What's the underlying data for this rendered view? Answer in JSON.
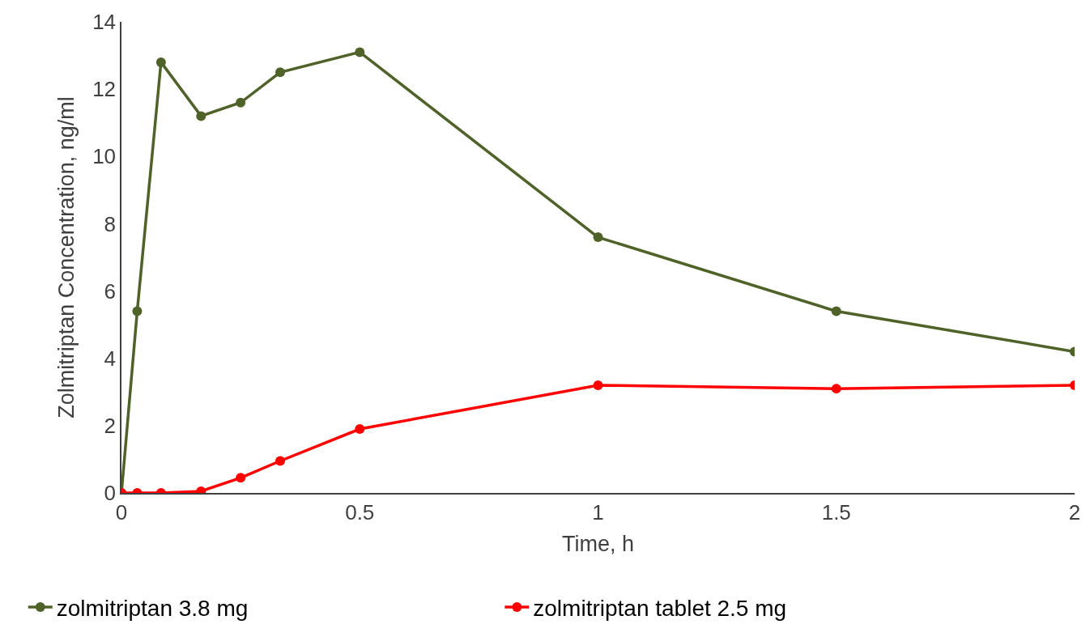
{
  "chart_data": {
    "type": "line",
    "xlabel": "Time, h",
    "ylabel": "Zolmitriptan Concentration, ng/ml",
    "x": [
      0,
      0.033,
      0.083,
      0.167,
      0.25,
      0.333,
      0.5,
      1,
      1.5,
      2
    ],
    "series": [
      {
        "name": "zolmitriptan 3.8 mg",
        "color": "#4f6228",
        "values": [
          0,
          5.4,
          12.8,
          11.2,
          11.6,
          12.5,
          13.1,
          7.6,
          5.4,
          4.2
        ]
      },
      {
        "name": "zolmitriptan tablet 2.5 mg",
        "color": "#ff0000",
        "values": [
          0,
          0,
          0,
          0.05,
          0.45,
          0.95,
          1.9,
          3.2,
          3.1,
          3.2
        ]
      }
    ],
    "xlim": [
      0,
      2
    ],
    "xticks": [
      0,
      0.5,
      1,
      1.5,
      2
    ],
    "ylim": [
      0,
      14
    ],
    "yticks": [
      0,
      2,
      4,
      6,
      8,
      10,
      12,
      14
    ],
    "legend": "bottom",
    "marker": "circle",
    "line_style": "solid"
  }
}
